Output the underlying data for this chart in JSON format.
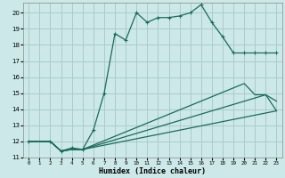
{
  "xlabel": "Humidex (Indice chaleur)",
  "ylabel": "",
  "bg_color": "#cce8e8",
  "grid_color": "#aacccc",
  "line_color": "#1a6b5a",
  "xlim": [
    -0.5,
    23.5
  ],
  "ylim": [
    11,
    20.6
  ],
  "xticks": [
    0,
    1,
    2,
    3,
    4,
    5,
    6,
    7,
    8,
    9,
    10,
    11,
    12,
    13,
    14,
    15,
    16,
    17,
    18,
    19,
    20,
    21,
    22,
    23
  ],
  "yticks": [
    11,
    12,
    13,
    14,
    15,
    16,
    17,
    18,
    19,
    20
  ],
  "lines": [
    {
      "x": [
        0,
        2,
        3,
        4,
        5,
        6,
        7,
        8,
        9,
        10,
        11,
        12,
        13,
        14,
        15,
        16,
        17,
        18,
        19,
        20,
        21,
        22,
        23
      ],
      "y": [
        12,
        12,
        11.4,
        11.6,
        11.5,
        12.7,
        15.0,
        18.7,
        18.3,
        20.0,
        19.4,
        19.7,
        19.7,
        19.8,
        20.0,
        20.5,
        19.4,
        18.5,
        17.5,
        17.5,
        17.5,
        17.5,
        17.5
      ],
      "markers": true
    },
    {
      "x": [
        0,
        2,
        3,
        4,
        5,
        23
      ],
      "y": [
        12,
        12,
        11.4,
        11.5,
        11.5,
        13.9
      ],
      "markers": false
    },
    {
      "x": [
        0,
        2,
        3,
        4,
        5,
        20,
        21,
        22,
        23
      ],
      "y": [
        12,
        12,
        11.4,
        11.5,
        11.5,
        15.6,
        14.9,
        14.9,
        14.5
      ],
      "markers": false
    },
    {
      "x": [
        0,
        2,
        3,
        4,
        5,
        22,
        23
      ],
      "y": [
        12,
        12,
        11.4,
        11.5,
        11.5,
        14.9,
        13.9
      ],
      "markers": false
    }
  ]
}
